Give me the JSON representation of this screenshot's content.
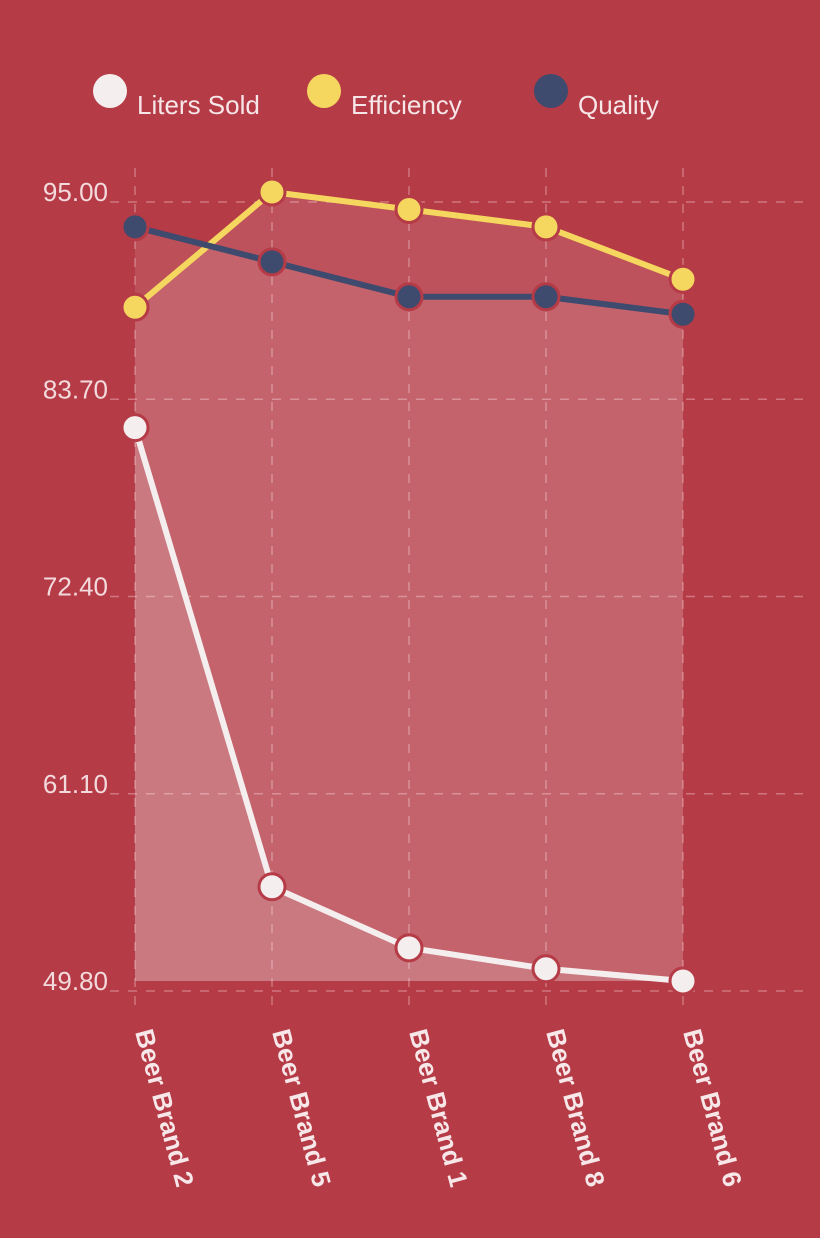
{
  "chart_data": {
    "type": "area",
    "categories": [
      "Beer Brand 2",
      "Beer Brand 5",
      "Beer Brand 1",
      "Beer Brand 8",
      "Beer Brand 6"
    ],
    "series": [
      {
        "name": "Liters Sold",
        "color": "#f4eeee",
        "values": [
          81.5,
          55.2,
          51.7,
          50.5,
          49.8
        ]
      },
      {
        "name": "Efficiency",
        "color": "#f5d760",
        "values": [
          88.4,
          95.0,
          94.0,
          93.0,
          90.0
        ]
      },
      {
        "name": "Quality",
        "color": "#3e4a6e",
        "values": [
          93.0,
          91.0,
          89.0,
          89.0,
          88.0
        ]
      }
    ],
    "y_ticks": [
      "95.00",
      "83.70",
      "72.40",
      "61.10",
      "49.80"
    ],
    "ylim": [
      49.8,
      95.0
    ],
    "grid": true,
    "legend_position": "top",
    "colors": {
      "background": "#b53b46",
      "grid": "#d88a91",
      "marker_outline": "#b53b46"
    }
  }
}
